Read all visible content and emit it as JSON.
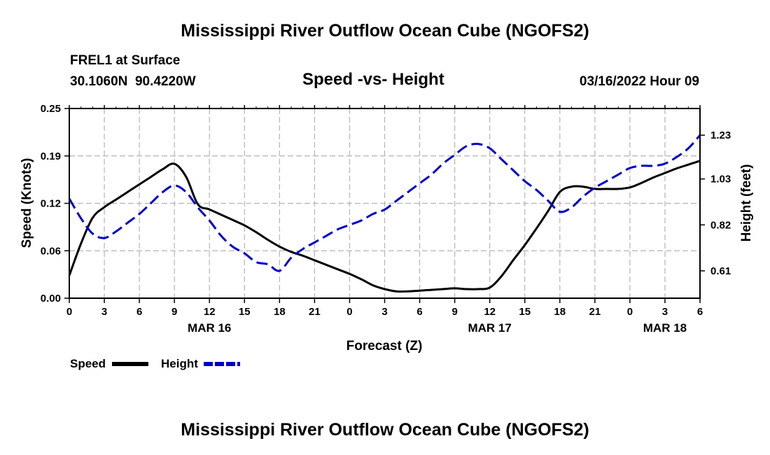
{
  "page": {
    "title": "Mississippi River Outflow Ocean Cube (NGOFS2)",
    "title_repeat": "Mississippi River Outflow Ocean Cube (NGOFS2)",
    "station": "FREL1 at Surface",
    "coords": "30.1060N  90.4220W",
    "datetime": "03/16/2022 Hour 09"
  },
  "chart_data": {
    "type": "line",
    "title": "Speed -vs- Height",
    "xlabel": "Forecast (Z)",
    "ylabel_left": "Speed (Knots)",
    "ylabel_right": "Height (feet)",
    "x_range_hours": [
      0,
      54
    ],
    "x_ticks": [
      {
        "hour": 0,
        "label": "0"
      },
      {
        "hour": 3,
        "label": "3"
      },
      {
        "hour": 6,
        "label": "6"
      },
      {
        "hour": 9,
        "label": "9"
      },
      {
        "hour": 12,
        "label": "12"
      },
      {
        "hour": 15,
        "label": "15"
      },
      {
        "hour": 18,
        "label": "18"
      },
      {
        "hour": 21,
        "label": "21"
      },
      {
        "hour": 24,
        "label": "0"
      },
      {
        "hour": 27,
        "label": "3"
      },
      {
        "hour": 30,
        "label": "6"
      },
      {
        "hour": 33,
        "label": "9"
      },
      {
        "hour": 36,
        "label": "12"
      },
      {
        "hour": 39,
        "label": "15"
      },
      {
        "hour": 42,
        "label": "18"
      },
      {
        "hour": 45,
        "label": "21"
      },
      {
        "hour": 48,
        "label": "0"
      },
      {
        "hour": 51,
        "label": "3"
      },
      {
        "hour": 54,
        "label": "6"
      }
    ],
    "date_labels": [
      {
        "hour": 12,
        "label": "MAR 16"
      },
      {
        "hour": 36,
        "label": "MAR 17"
      },
      {
        "hour": 51,
        "label": "MAR 18"
      }
    ],
    "y_left": {
      "range": [
        0,
        0.25
      ],
      "ticks": [
        "0.00",
        "0.06",
        "0.12",
        "0.19",
        "0.25"
      ],
      "tick_values": [
        0,
        0.0625,
        0.125,
        0.1875,
        0.25
      ]
    },
    "y_right": {
      "range": [
        0.485,
        1.352
      ],
      "ticks": [
        "0.61",
        "0.82",
        "1.03",
        "1.23"
      ],
      "tick_values": [
        0.61,
        0.82,
        1.03,
        1.23
      ]
    },
    "grid": true,
    "legend": {
      "placement": "bottom-left"
    },
    "series": [
      {
        "name": "Speed",
        "color": "#000000",
        "dash": false,
        "axis": "left",
        "x": [
          0,
          1,
          2,
          3,
          4,
          5,
          6,
          7,
          8,
          9,
          10,
          11,
          12,
          13,
          14,
          15,
          16,
          17,
          18,
          19,
          20,
          21,
          22,
          23,
          24,
          25,
          26,
          27,
          28,
          29,
          30,
          31,
          32,
          33,
          34,
          35,
          36,
          37,
          38,
          39,
          40,
          41,
          42,
          43,
          44,
          45,
          46,
          47,
          48,
          49,
          50,
          51,
          52,
          53,
          54
        ],
        "values": [
          0.03,
          0.072,
          0.106,
          0.12,
          0.13,
          0.14,
          0.15,
          0.16,
          0.17,
          0.177,
          0.16,
          0.124,
          0.117,
          0.11,
          0.103,
          0.096,
          0.087,
          0.077,
          0.068,
          0.061,
          0.056,
          0.05,
          0.044,
          0.038,
          0.032,
          0.025,
          0.017,
          0.012,
          0.009,
          0.009,
          0.01,
          0.011,
          0.012,
          0.013,
          0.012,
          0.012,
          0.014,
          0.029,
          0.05,
          0.07,
          0.092,
          0.115,
          0.14,
          0.147,
          0.147,
          0.144,
          0.144,
          0.144,
          0.146,
          0.152,
          0.159,
          0.165,
          0.171,
          0.176,
          0.181
        ]
      },
      {
        "name": "Height",
        "color": "#0000cc",
        "dash": true,
        "axis": "right",
        "x": [
          0,
          1,
          2,
          3,
          4,
          5,
          6,
          7,
          8,
          9,
          10,
          11,
          12,
          13,
          14,
          15,
          16,
          17,
          18,
          19,
          20,
          21,
          22,
          23,
          24,
          25,
          26,
          27,
          28,
          29,
          30,
          31,
          32,
          33,
          34,
          35,
          36,
          37,
          38,
          39,
          40,
          41,
          42,
          43,
          44,
          45,
          46,
          47,
          48,
          49,
          50,
          51,
          52,
          53,
          54
        ],
        "values": [
          0.94,
          0.85,
          0.78,
          0.76,
          0.79,
          0.83,
          0.87,
          0.92,
          0.97,
          1.0,
          0.97,
          0.9,
          0.84,
          0.77,
          0.72,
          0.69,
          0.65,
          0.64,
          0.61,
          0.67,
          0.71,
          0.74,
          0.77,
          0.8,
          0.82,
          0.84,
          0.87,
          0.89,
          0.93,
          0.97,
          1.01,
          1.05,
          1.1,
          1.14,
          1.18,
          1.19,
          1.17,
          1.12,
          1.07,
          1.02,
          0.98,
          0.93,
          0.88,
          0.9,
          0.95,
          0.99,
          1.02,
          1.05,
          1.08,
          1.09,
          1.09,
          1.1,
          1.13,
          1.17,
          1.23
        ]
      }
    ]
  }
}
